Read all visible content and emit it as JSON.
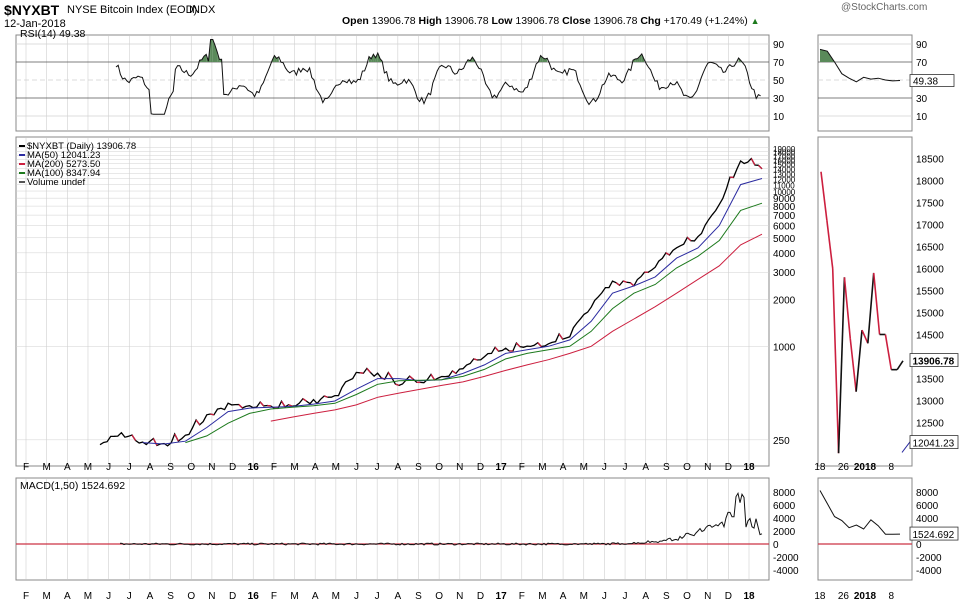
{
  "header": {
    "symbol": "$NYXBT",
    "name": "NYSE Bitcoin Index (EOD)",
    "exchange": "INDX",
    "date": "12-Jan-2018",
    "watermark": "@StockCharts.com",
    "open_label": "Open",
    "open": "13906.78",
    "high_label": "High",
    "high": "13906.78",
    "low_label": "Low",
    "low": "13906.78",
    "close_label": "Close",
    "close": "13906.78",
    "chg_label": "Chg",
    "chg": "+170.49 (+1.24%)",
    "chg_arrow": "▲"
  },
  "colors": {
    "price": "#000000",
    "ma50": "#2b2ba0",
    "ma200": "#cc1f3f",
    "ma100": "#1d7a1d",
    "rsi_fill": "#5a8a5a",
    "macd_zero": "#cc3344",
    "grid": "#d0d0d0",
    "border": "#888888"
  },
  "rsi": {
    "label": "RSI(14) 49.38",
    "current": "49.38",
    "ticks": [
      "90",
      "70",
      "50",
      "30",
      "10"
    ],
    "levels": [
      90,
      70,
      50,
      30,
      10
    ],
    "overbought": 70,
    "oversold": 30
  },
  "price": {
    "legend": [
      {
        "text": "$NYXBT (Daily) 13906.78",
        "color": "#000000"
      },
      {
        "text": "MA(50) 12041.23",
        "color": "#2b2ba0"
      },
      {
        "text": "MA(200) 5273.50",
        "color": "#cc1f3f"
      },
      {
        "text": "MA(100) 8347.94",
        "color": "#1d7a1d"
      },
      {
        "text": "Volume undef",
        "color": "#555555"
      }
    ],
    "ticks": [
      "19000",
      "18000",
      "17000",
      "16000",
      "15000",
      "14000",
      "13000",
      "12000",
      "11000",
      "10000",
      "9000",
      "8000",
      "7000",
      "6000",
      "5000",
      "4000",
      "3000",
      "2000",
      "1000",
      "250"
    ],
    "tick_values": [
      19000,
      18000,
      17000,
      16000,
      15000,
      14000,
      13000,
      12000,
      11000,
      10000,
      9000,
      8000,
      7000,
      6000,
      5000,
      4000,
      3000,
      2000,
      1000,
      250
    ],
    "ylim": [
      180,
      21000
    ],
    "scale": "log",
    "last_value_tag": "13906.78"
  },
  "zoom": {
    "ticks": [
      "18500",
      "18000",
      "17500",
      "17000",
      "16500",
      "16000",
      "15500",
      "15000",
      "14500",
      "14000",
      "13500",
      "13000",
      "12500",
      "12000"
    ],
    "tick_values": [
      18500,
      18000,
      17500,
      17000,
      16500,
      16000,
      15500,
      15000,
      14500,
      14000,
      13500,
      13000,
      12500,
      12000
    ],
    "ylim": [
      11600,
      18900
    ],
    "price_tag": "13906.78",
    "ma_tag": "12041.23",
    "x_labels": [
      "18",
      "26",
      "2018",
      "8"
    ],
    "x_pos": [
      0.02,
      0.27,
      0.5,
      0.78
    ],
    "price_values": [
      18200,
      17100,
      16000,
      11800,
      15800,
      14400,
      13200,
      14600,
      14300,
      15900,
      14500,
      14500,
      13700,
      13700,
      13900
    ],
    "macd_values": [
      8200,
      6200,
      4200,
      3600,
      2500,
      2900,
      2300,
      3700,
      2800,
      1500,
      1500,
      1524
    ],
    "rsi_values": [
      84,
      82,
      70,
      57,
      52,
      48,
      53,
      51,
      52,
      50,
      49,
      49.38
    ]
  },
  "macd": {
    "label": "MACD(1,50) 1524.692",
    "current": "1524.692",
    "ticks": [
      "8000",
      "6000",
      "4000",
      "2000",
      "0",
      "-2000",
      "-4000"
    ],
    "tick_values": [
      8000,
      6000,
      4000,
      2000,
      0,
      -2000,
      -4000
    ],
    "ylim": [
      -5200,
      9800
    ]
  },
  "x_axis": {
    "labels": [
      "F",
      "M",
      "A",
      "M",
      "J",
      "J",
      "A",
      "S",
      "O",
      "N",
      "D",
      "16",
      "F",
      "M",
      "A",
      "M",
      "J",
      "J",
      "A",
      "S",
      "O",
      "N",
      "D",
      "17",
      "F",
      "M",
      "A",
      "M",
      "J",
      "J",
      "A",
      "S",
      "O",
      "N",
      "D",
      "18"
    ],
    "bold": [
      "16",
      "17",
      "18"
    ]
  },
  "chart_data": {
    "type": "line",
    "title": "$NYXBT NYSE Bitcoin Index (EOD) INDX",
    "xlabel": "",
    "ylabel": "",
    "scale": "log",
    "x": [
      "2015-06",
      "2015-07",
      "2015-08",
      "2015-09",
      "2015-10",
      "2015-11",
      "2015-12",
      "2016-01",
      "2016-02",
      "2016-03",
      "2016-04",
      "2016-05",
      "2016-06",
      "2016-07",
      "2016-08",
      "2016-09",
      "2016-10",
      "2016-11",
      "2016-12",
      "2017-01",
      "2017-02",
      "2017-03",
      "2017-04",
      "2017-05",
      "2017-06",
      "2017-07",
      "2017-08",
      "2017-09",
      "2017-10",
      "2017-11",
      "2017-12",
      "2018-01"
    ],
    "series": [
      {
        "name": "$NYXBT (Daily)",
        "values": [
          230,
          270,
          240,
          230,
          270,
          350,
          420,
          400,
          410,
          420,
          440,
          470,
          660,
          660,
          580,
          600,
          640,
          720,
          850,
          950,
          1000,
          1050,
          1200,
          1800,
          2600,
          2500,
          3300,
          4200,
          5000,
          8000,
          16000,
          13906.78
        ]
      },
      {
        "name": "MA(50)",
        "values": [
          null,
          null,
          240,
          235,
          245,
          300,
          380,
          400,
          405,
          410,
          425,
          445,
          530,
          620,
          620,
          600,
          610,
          670,
          760,
          900,
          950,
          1000,
          1100,
          1450,
          2200,
          2450,
          2800,
          3700,
          4300,
          6000,
          11000,
          12041.23
        ]
      },
      {
        "name": "MA(100)",
        "values": [
          null,
          null,
          null,
          null,
          240,
          265,
          320,
          370,
          395,
          405,
          415,
          430,
          490,
          570,
          600,
          605,
          610,
          640,
          710,
          830,
          900,
          950,
          1000,
          1250,
          1750,
          2200,
          2500,
          3200,
          3800,
          4800,
          7500,
          8347.94
        ]
      },
      {
        "name": "MA(200)",
        "values": [
          null,
          null,
          null,
          null,
          null,
          null,
          null,
          null,
          330,
          350,
          370,
          390,
          420,
          470,
          500,
          530,
          560,
          590,
          640,
          700,
          760,
          820,
          900,
          1000,
          1250,
          1500,
          1800,
          2200,
          2700,
          3300,
          4500,
          5273.5
        ]
      }
    ]
  }
}
